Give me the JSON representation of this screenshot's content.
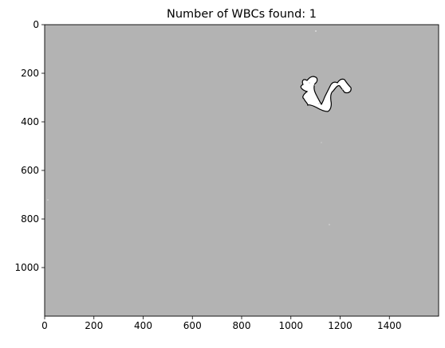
{
  "chart_data": {
    "type": "image",
    "title": "Number of WBCs found: 1",
    "x_ticks": [
      0,
      200,
      400,
      600,
      800,
      1000,
      1200,
      1400
    ],
    "y_ticks": [
      0,
      200,
      400,
      600,
      800,
      1000
    ],
    "xlim": [
      0,
      1600
    ],
    "ylim": [
      1200,
      0
    ],
    "background_color": "#b3b3b3",
    "blob_fill_color": "#ffffff",
    "blob_outline_color": "#000000"
  }
}
